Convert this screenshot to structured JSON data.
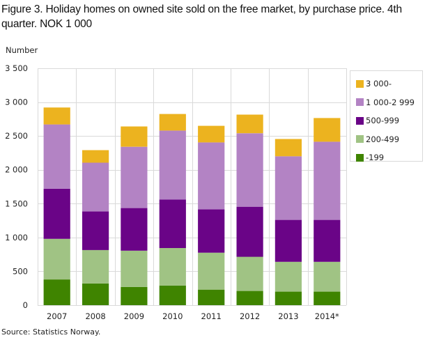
{
  "chart_data": {
    "type": "bar",
    "stacked": true,
    "title": "Figure 3. Holiday homes on owned site sold on the free market, by purchase price. 4th quarter. NOK 1 000",
    "xlabel": "",
    "ylabel": "Number",
    "ylim": [
      0,
      3500
    ],
    "yticks": [
      0,
      500,
      1000,
      1500,
      2000,
      2500,
      3000,
      3500
    ],
    "ytick_labels": [
      "0",
      "500",
      "1 000",
      "1 500",
      "2 000",
      "2 500",
      "3 000",
      "3 500"
    ],
    "grid": true,
    "legend_position": "right",
    "categories": [
      "2007",
      "2008",
      "2009",
      "2010",
      "2011",
      "2012",
      "2013",
      "2014*"
    ],
    "series": [
      {
        "name": "-199",
        "color": "#3F8400",
        "values": [
          380,
          320,
          270,
          290,
          230,
          210,
          200,
          200
        ]
      },
      {
        "name": "200-499",
        "color": "#A0C384",
        "values": [
          600,
          495,
          535,
          555,
          545,
          505,
          440,
          440
        ]
      },
      {
        "name": "500-999",
        "color": "#6A0487",
        "values": [
          740,
          570,
          630,
          715,
          640,
          740,
          620,
          620
        ]
      },
      {
        "name": "1 000-2 999",
        "color": "#B383C4",
        "values": [
          950,
          720,
          905,
          1020,
          990,
          1085,
          940,
          1155
        ]
      },
      {
        "name": "3 000-",
        "color": "#ECB31F",
        "values": [
          250,
          185,
          300,
          245,
          245,
          275,
          255,
          350
        ]
      }
    ],
    "legend_order": [
      "3 000-",
      "1 000-2 999",
      "500-999",
      "200-499",
      "-199"
    ],
    "source": "Source: Statistics Norway."
  }
}
